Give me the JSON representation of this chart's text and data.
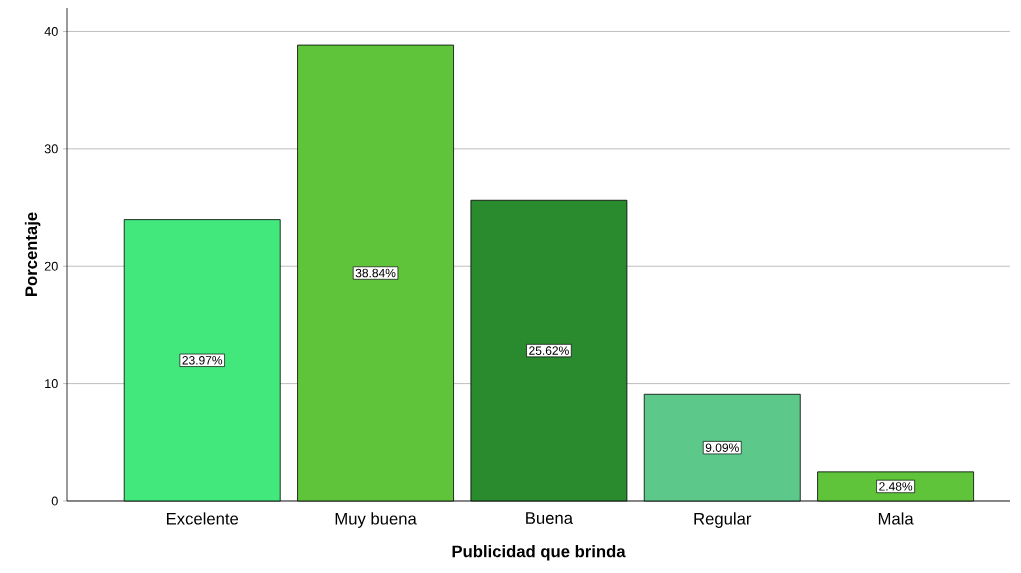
{
  "chart_data": {
    "type": "bar",
    "xlabel": "Publicidad que brinda",
    "ylabel": "Porcentaje",
    "categories": [
      "Excelente",
      "Muy buena",
      "Buena",
      "Regular",
      "Mala"
    ],
    "values": [
      23.97,
      38.84,
      25.62,
      9.09,
      2.48
    ],
    "colors": [
      "#42e87c",
      "#5fc43a",
      "#2a8a2e",
      "#5cc98a",
      "#5fc43a"
    ],
    "value_labels": [
      "23.97%",
      "38.84%",
      "25.62%",
      "9.09%",
      "2.48%"
    ],
    "ylim": [
      0,
      42
    ],
    "yticks": [
      0,
      10,
      20,
      30,
      40
    ],
    "grid": "y"
  }
}
